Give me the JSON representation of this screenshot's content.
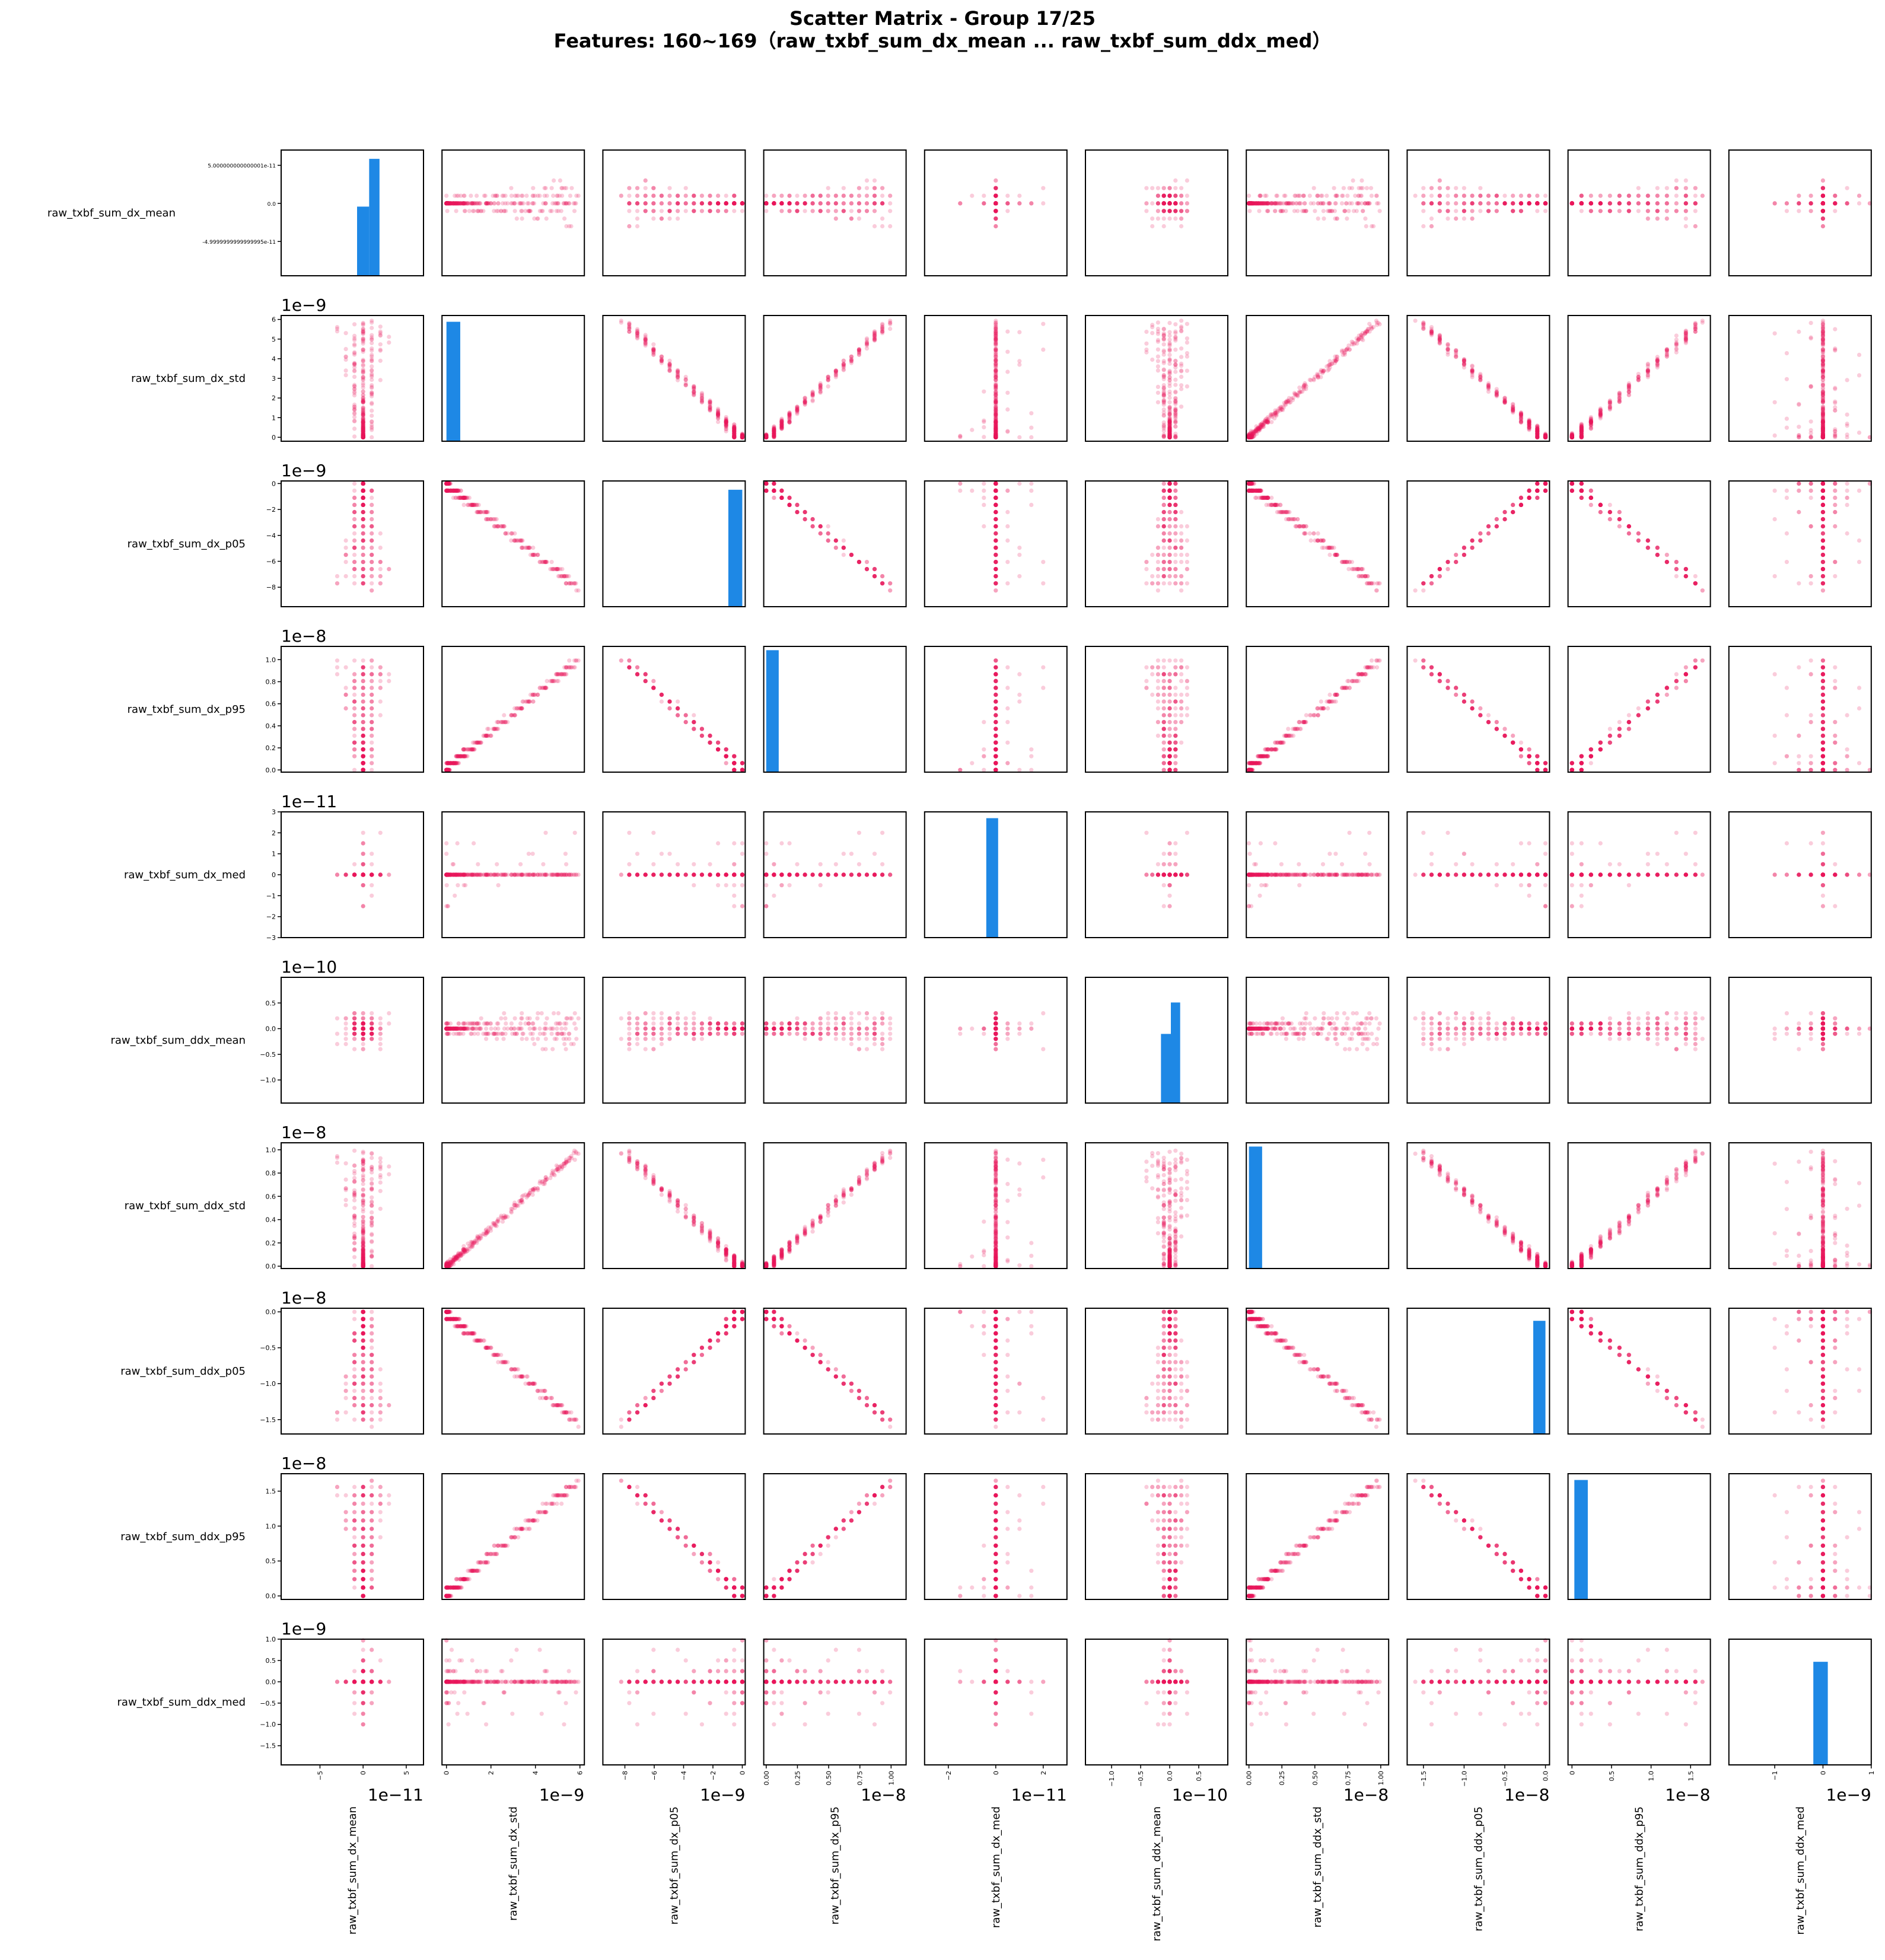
{
  "title_line1": "Scatter Matrix - Group 17/25",
  "title_line2": "Features: 160~169（raw_txbf_sum_dx_mean ... raw_txbf_sum_ddx_med）",
  "colors": {
    "points": "#e8195a",
    "hist": "#1e88e5",
    "frame": "#000000"
  },
  "chart_data": {
    "type": "scatter",
    "plot_kind": "scatter_matrix",
    "diagonal": "histogram",
    "grid": false,
    "features": [
      {
        "name": "raw_txbf_sum_dx_mean",
        "lim": [
          -9.5,
          7
        ],
        "multiplier": "1e−11",
        "yticks": [
          [
            5,
            "5.000000000000001e-11"
          ],
          [
            0,
            "0.0"
          ],
          [
            -5,
            "-4.9999999999999995e-11"
          ]
        ],
        "xticks": [
          [
            -5,
            "−5"
          ],
          [
            0,
            "0"
          ],
          [
            5,
            "5"
          ]
        ]
      },
      {
        "name": "raw_txbf_sum_dx_std",
        "lim": [
          -0.2,
          6.2
        ],
        "multiplier": "1e−9",
        "yticks": [
          [
            0,
            "0"
          ],
          [
            1,
            "1"
          ],
          [
            2,
            "2"
          ],
          [
            3,
            "3"
          ],
          [
            4,
            "4"
          ],
          [
            5,
            "5"
          ],
          [
            6,
            "6"
          ]
        ],
        "xticks": [
          [
            0,
            "0"
          ],
          [
            2,
            "2"
          ],
          [
            4,
            "4"
          ],
          [
            6,
            "6"
          ]
        ]
      },
      {
        "name": "raw_txbf_sum_dx_p05",
        "lim": [
          -9.5,
          0.2
        ],
        "multiplier": "1e−9",
        "yticks": [
          [
            0,
            "0"
          ],
          [
            -2,
            "−2"
          ],
          [
            -4,
            "−4"
          ],
          [
            -6,
            "−6"
          ],
          [
            -8,
            "−8"
          ]
        ],
        "xticks": [
          [
            -8,
            "−8"
          ],
          [
            -6,
            "−6"
          ],
          [
            -4,
            "−4"
          ],
          [
            -2,
            "−2"
          ],
          [
            0,
            "0"
          ]
        ]
      },
      {
        "name": "raw_txbf_sum_dx_p95",
        "lim": [
          -0.02,
          1.12
        ],
        "multiplier": "1e−8",
        "yticks": [
          [
            0,
            "0.0"
          ],
          [
            0.2,
            "0.2"
          ],
          [
            0.4,
            "0.4"
          ],
          [
            0.6,
            "0.6"
          ],
          [
            0.8,
            "0.8"
          ],
          [
            1.0,
            "1.0"
          ]
        ],
        "xticks": [
          [
            0,
            "0.00"
          ],
          [
            0.25,
            "0.25"
          ],
          [
            0.5,
            "0.50"
          ],
          [
            0.75,
            "0.75"
          ],
          [
            1.0,
            "1.00"
          ]
        ]
      },
      {
        "name": "raw_txbf_sum_dx_med",
        "lim": [
          -3,
          3
        ],
        "multiplier": "1e−11",
        "yticks": [
          [
            3,
            "3"
          ],
          [
            2,
            "2"
          ],
          [
            1,
            "1"
          ],
          [
            0,
            "0"
          ],
          [
            -1,
            "−1"
          ],
          [
            -2,
            "−2"
          ],
          [
            -3,
            "−3"
          ]
        ],
        "xticks": [
          [
            -2,
            "−2"
          ],
          [
            0,
            "0"
          ],
          [
            2,
            "2"
          ]
        ]
      },
      {
        "name": "raw_txbf_sum_ddx_mean",
        "lim": [
          -1.45,
          1.0
        ],
        "multiplier": "1e−10",
        "yticks": [
          [
            0.5,
            "0.5"
          ],
          [
            0,
            "0.0"
          ],
          [
            -0.5,
            "−0.5"
          ],
          [
            -1.0,
            "−1.0"
          ]
        ],
        "xticks": [
          [
            -1.0,
            "−1.0"
          ],
          [
            -0.5,
            "−0.5"
          ],
          [
            0,
            "0.0"
          ],
          [
            0.5,
            "0.5"
          ]
        ]
      },
      {
        "name": "raw_txbf_sum_ddx_std",
        "lim": [
          -0.02,
          1.06
        ],
        "multiplier": "1e−8",
        "yticks": [
          [
            0,
            "0.0"
          ],
          [
            0.2,
            "0.2"
          ],
          [
            0.4,
            "0.4"
          ],
          [
            0.6,
            "0.6"
          ],
          [
            0.8,
            "0.8"
          ],
          [
            1.0,
            "1.0"
          ]
        ],
        "xticks": [
          [
            0,
            "0.00"
          ],
          [
            0.25,
            "0.25"
          ],
          [
            0.5,
            "0.50"
          ],
          [
            0.75,
            "0.75"
          ],
          [
            1.0,
            "1.00"
          ]
        ]
      },
      {
        "name": "raw_txbf_sum_ddx_p05",
        "lim": [
          -1.7,
          0.05
        ],
        "multiplier": "1e−8",
        "yticks": [
          [
            0,
            "0.0"
          ],
          [
            -0.5,
            "−0.5"
          ],
          [
            -1.0,
            "−1.0"
          ],
          [
            -1.5,
            "−1.5"
          ]
        ],
        "xticks": [
          [
            -1.5,
            "−1.5"
          ],
          [
            -1.0,
            "−1.0"
          ],
          [
            -0.5,
            "−0.5"
          ],
          [
            0,
            "0.0"
          ]
        ]
      },
      {
        "name": "raw_txbf_sum_ddx_p95",
        "lim": [
          -0.05,
          1.75
        ],
        "multiplier": "1e−8",
        "yticks": [
          [
            0,
            "0.0"
          ],
          [
            0.5,
            "0.5"
          ],
          [
            1.0,
            "1.0"
          ],
          [
            1.5,
            "1.5"
          ]
        ],
        "xticks": [
          [
            0,
            "0"
          ],
          [
            0.5,
            "0.5"
          ],
          [
            1.0,
            "1.0"
          ],
          [
            1.5,
            "1.5"
          ]
        ]
      },
      {
        "name": "raw_txbf_sum_ddx_med",
        "lim": [
          -1.95,
          1.0
        ],
        "multiplier": "1e−9",
        "yticks": [
          [
            1.0,
            "1.0"
          ],
          [
            0.5,
            "0.5"
          ],
          [
            0,
            "0.0"
          ],
          [
            -0.5,
            "−0.5"
          ],
          [
            -1.0,
            "−1.0"
          ],
          [
            -1.5,
            "−1.5"
          ]
        ],
        "xticks": [
          [
            -1,
            "−1"
          ],
          [
            0,
            "0"
          ],
          [
            1,
            "1"
          ]
        ]
      }
    ],
    "histograms": [
      {
        "bins": [
          [
            -0.7,
            0.7,
            0.55
          ],
          [
            0.7,
            1.9,
            0.93
          ]
        ]
      },
      {
        "bins": [
          [
            0,
            0.62,
            0.95
          ]
        ]
      },
      {
        "bins": [
          [
            -0.95,
            0,
            0.93
          ]
        ]
      },
      {
        "bins": [
          [
            0,
            0.1,
            0.97
          ]
        ]
      },
      {
        "bins": [
          [
            -0.4,
            0.1,
            0.95
          ]
        ]
      },
      {
        "bins": [
          [
            -0.15,
            0.02,
            0.55
          ],
          [
            0.02,
            0.18,
            0.8
          ]
        ]
      },
      {
        "bins": [
          [
            0,
            0.1,
            0.97
          ]
        ]
      },
      {
        "bins": [
          [
            -0.15,
            0,
            0.9
          ]
        ]
      },
      {
        "bins": [
          [
            0.03,
            0.2,
            0.95
          ]
        ]
      },
      {
        "bins": [
          [
            -0.2,
            0.1,
            0.82
          ]
        ]
      }
    ]
  }
}
